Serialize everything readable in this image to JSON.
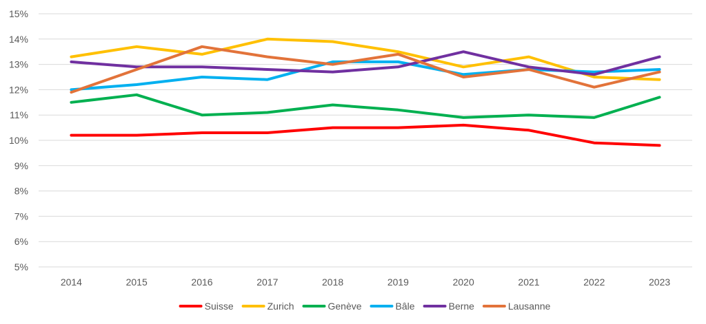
{
  "chart_data": {
    "type": "line",
    "title": "",
    "xlabel": "",
    "ylabel": "",
    "categories": [
      "2014",
      "2015",
      "2016",
      "2017",
      "2018",
      "2019",
      "2020",
      "2021",
      "2022",
      "2023"
    ],
    "ylim": [
      5,
      15
    ],
    "yticks": [
      5,
      6,
      7,
      8,
      9,
      10,
      11,
      12,
      13,
      14,
      15
    ],
    "y_tick_suffix": "%",
    "grid": true,
    "legend_position": "bottom",
    "series": [
      {
        "name": "Suisse",
        "color": "#ff0000",
        "values": [
          10.2,
          10.2,
          10.3,
          10.3,
          10.5,
          10.5,
          10.6,
          10.4,
          9.9,
          9.8
        ]
      },
      {
        "name": "Zurich",
        "color": "#ffc000",
        "values": [
          13.3,
          13.7,
          13.4,
          14.0,
          13.9,
          13.5,
          12.9,
          13.3,
          12.5,
          12.4
        ]
      },
      {
        "name": "Genève",
        "color": "#00b050",
        "values": [
          11.5,
          11.8,
          11.0,
          11.1,
          11.4,
          11.2,
          10.9,
          11.0,
          10.9,
          11.7
        ]
      },
      {
        "name": "Bâle",
        "color": "#00b0f0",
        "values": [
          12.0,
          12.2,
          12.5,
          12.4,
          13.1,
          13.1,
          12.6,
          12.8,
          12.7,
          12.8
        ]
      },
      {
        "name": "Berne",
        "color": "#7030a0",
        "values": [
          13.1,
          12.9,
          12.9,
          12.8,
          12.7,
          12.9,
          13.5,
          12.9,
          12.6,
          13.3
        ]
      },
      {
        "name": "Lausanne",
        "color": "#e2733a",
        "values": [
          11.9,
          12.8,
          13.7,
          13.3,
          13.0,
          13.4,
          12.5,
          12.8,
          12.1,
          12.7
        ]
      }
    ]
  }
}
